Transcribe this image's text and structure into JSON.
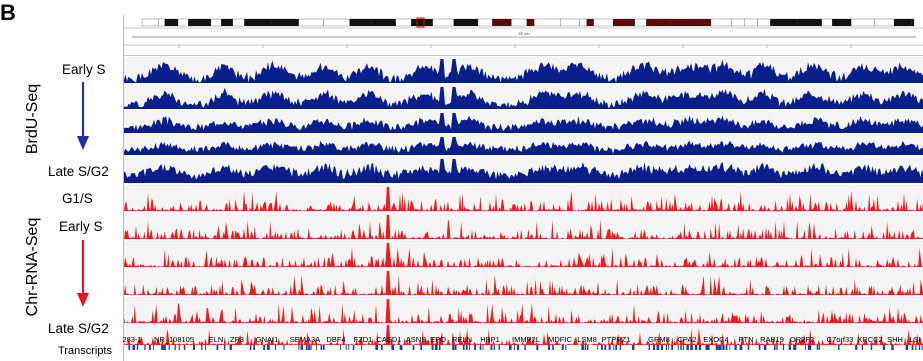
{
  "figure": {
    "panel_letter": "B",
    "group_labels": {
      "brdu": "BrdU-Seq",
      "chr": "Chr-RNA-Seq"
    },
    "side_labels": {
      "brdu_top": "Early S",
      "brdu_bottom": "Late S/G2",
      "chr_g1s": "G1/S",
      "chr_early": "Early S",
      "chr_bottom": "Late S/G2",
      "transcripts": "Transcripts"
    },
    "colors": {
      "brdu": "#0a1e8c",
      "chr": "#ee1c1c",
      "arrow_blue": "#1c2fa8",
      "arrow_red": "#e8141e",
      "gene": "#1e3ea0"
    },
    "scale_label": "85 mb",
    "genes": [
      "283-1",
      "NR_108105",
      "ELN",
      "ZP3",
      "GNAI1",
      "SEMA3A",
      "DBF4",
      "FZD1",
      "CASD1",
      "ASNS",
      "EPO",
      "RELN",
      "HBP1",
      "IMMP2L",
      "MDFIC",
      "LSM8",
      "PTPRZ1",
      "GRM8",
      "CPA2",
      "EXOC4",
      "PTN",
      "RAB19",
      "OR2F2",
      "C7orf33",
      "XRCC2",
      "SHH",
      "LSI"
    ]
  }
}
